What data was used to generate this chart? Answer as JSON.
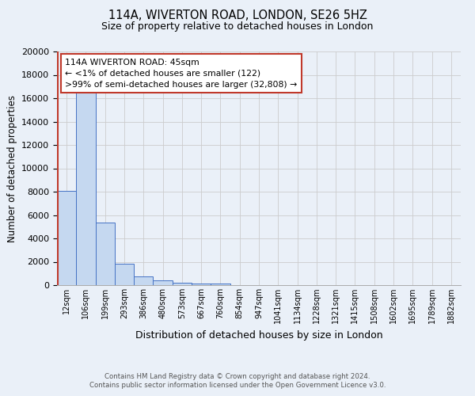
{
  "title_line1": "114A, WIVERTON ROAD, LONDON, SE26 5HZ",
  "title_line2": "Size of property relative to detached houses in London",
  "xlabel": "Distribution of detached houses by size in London",
  "ylabel": "Number of detached properties",
  "bin_labels": [
    "12sqm",
    "106sqm",
    "199sqm",
    "293sqm",
    "386sqm",
    "480sqm",
    "573sqm",
    "667sqm",
    "760sqm",
    "854sqm",
    "947sqm",
    "1041sqm",
    "1134sqm",
    "1228sqm",
    "1321sqm",
    "1415sqm",
    "1508sqm",
    "1602sqm",
    "1695sqm",
    "1789sqm",
    "1882sqm"
  ],
  "bar_values": [
    8100,
    16500,
    5350,
    1820,
    720,
    380,
    220,
    165,
    155,
    0,
    0,
    0,
    0,
    0,
    0,
    0,
    0,
    0,
    0,
    0,
    0
  ],
  "bar_color": "#c5d8f0",
  "bar_edge_color": "#4472c4",
  "grid_color": "#cccccc",
  "background_color": "#eaf0f8",
  "vline_color": "#c0392b",
  "ylim": [
    0,
    20000
  ],
  "yticks": [
    0,
    2000,
    4000,
    6000,
    8000,
    10000,
    12000,
    14000,
    16000,
    18000,
    20000
  ],
  "annotation_text": "114A WIVERTON ROAD: 45sqm\n← <1% of detached houses are smaller (122)\n>99% of semi-detached houses are larger (32,808) →",
  "annotation_box_edge": "#c0392b",
  "footer_line1": "Contains HM Land Registry data © Crown copyright and database right 2024.",
  "footer_line2": "Contains public sector information licensed under the Open Government Licence v3.0."
}
